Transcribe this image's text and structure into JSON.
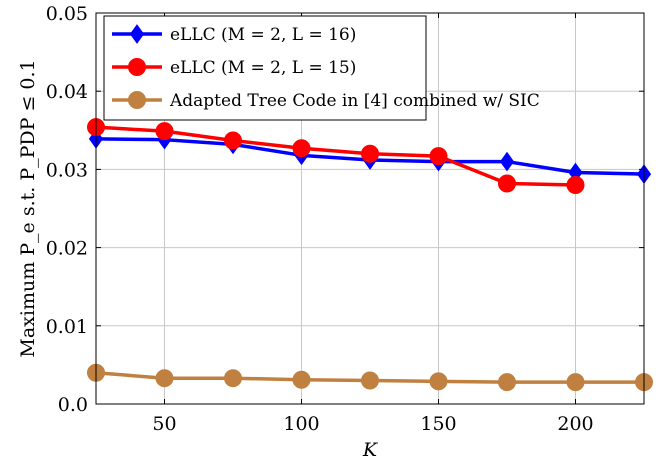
{
  "chart_data": {
    "type": "line",
    "xlabel": "K",
    "ylabel": "Maximum P_e s.t. P_PDP ≤ 0.1",
    "xlim": [
      25,
      225
    ],
    "ylim": [
      0,
      0.05
    ],
    "x_ticks": [
      50,
      100,
      150,
      200
    ],
    "y_ticks": [
      0.0,
      0.01,
      0.02,
      0.03,
      0.04,
      0.05
    ],
    "y_tick_labels": [
      "0.0",
      "0.01",
      "0.02",
      "0.03",
      "0.04",
      "0.05"
    ],
    "grid": true,
    "legend_position": "top-left",
    "series": [
      {
        "name": "eLLC (M = 2, L = 16)",
        "color": "#0000ff",
        "marker": "diamond",
        "x": [
          25,
          50,
          75,
          100,
          125,
          150,
          175,
          200,
          225
        ],
        "y": [
          0.0339,
          0.0338,
          0.0332,
          0.0318,
          0.0312,
          0.031,
          0.031,
          0.0296,
          0.0294
        ]
      },
      {
        "name": "eLLC (M = 2, L = 15)",
        "color": "#ff0000",
        "marker": "circle",
        "x": [
          25,
          50,
          75,
          100,
          125,
          150,
          175,
          200
        ],
        "y": [
          0.0354,
          0.0349,
          0.0337,
          0.0327,
          0.032,
          0.0317,
          0.0282,
          0.028
        ]
      },
      {
        "name": "Adapted Tree Code in [4] combined w/ SIC",
        "color": "#bf8040",
        "marker": "circle",
        "x": [
          25,
          50,
          75,
          100,
          125,
          150,
          175,
          200,
          225
        ],
        "y": [
          0.004,
          0.0033,
          0.0033,
          0.0031,
          0.003,
          0.0029,
          0.0028,
          0.0028,
          0.0028
        ]
      }
    ]
  }
}
